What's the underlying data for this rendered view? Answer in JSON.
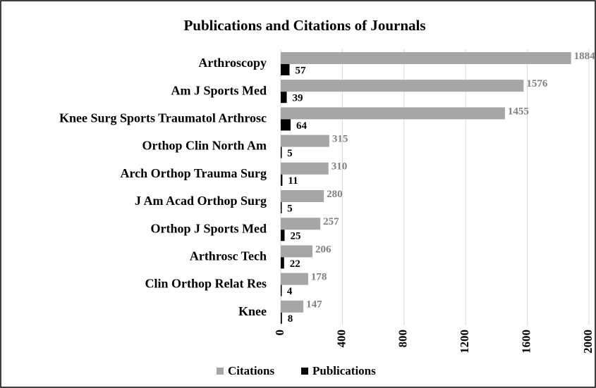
{
  "chart_data": {
    "type": "bar",
    "orientation": "horizontal",
    "title": "Publications and Citations of Journals",
    "categories": [
      "Arthroscopy",
      "Am J Sports Med",
      "Knee Surg Sports Traumatol Arthrosc",
      "Orthop Clin North Am",
      "Arch Orthop Trauma Surg",
      "J Am Acad Orthop Surg",
      "Orthop J Sports Med",
      "Arthrosc Tech",
      "Clin Orthop Relat Res",
      "Knee"
    ],
    "series": [
      {
        "name": "Citations",
        "color": "#a6a6a6",
        "values": [
          1884,
          1576,
          1455,
          315,
          310,
          280,
          257,
          206,
          178,
          147
        ]
      },
      {
        "name": "Publications",
        "color": "#000000",
        "values": [
          57,
          39,
          64,
          5,
          11,
          5,
          25,
          22,
          4,
          8
        ]
      }
    ],
    "xlim": [
      0,
      2000
    ],
    "xticks": [
      0,
      400,
      800,
      1200,
      1600,
      2000
    ],
    "grid": true,
    "legend": "bottom"
  }
}
